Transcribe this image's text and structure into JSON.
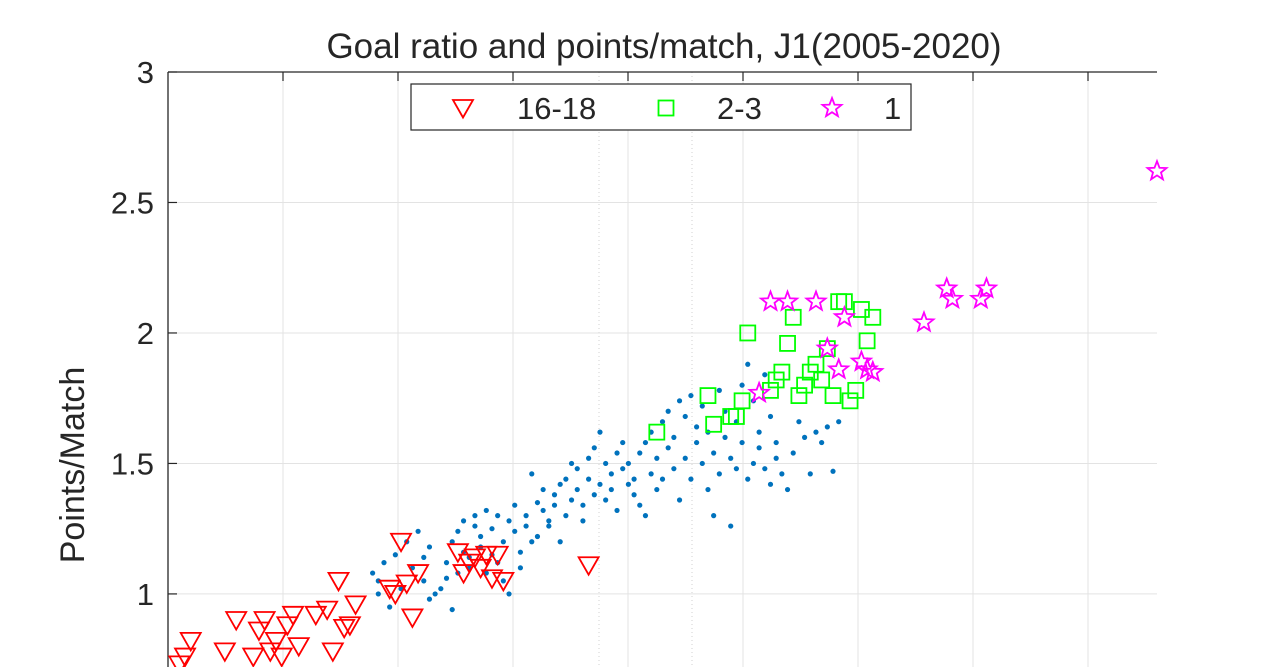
{
  "chart_data": {
    "type": "scatter",
    "title": "Goal ratio and points/match, J1(2005-2020)",
    "xlabel": "",
    "ylabel": "Points/Match",
    "ylim": [
      0.72,
      3
    ],
    "yticks": [
      1,
      1.5,
      2,
      2.5,
      3
    ],
    "ytick_labels": [
      "1",
      "1.5",
      "2",
      "2.5",
      "3"
    ],
    "grid": true,
    "legend": {
      "placement": "top-center",
      "orientation": "horizontal"
    },
    "series": [
      {
        "name": "",
        "marker": "dot",
        "color": "#0072BD",
        "points": [
          [
            0.0,
            1.08
          ],
          [
            0.01,
            1.05
          ],
          [
            0.01,
            1.0
          ],
          [
            0.02,
            1.12
          ],
          [
            0.03,
            0.95
          ],
          [
            0.04,
            1.15
          ],
          [
            0.05,
            1.02
          ],
          [
            0.06,
            1.2
          ],
          [
            0.07,
            1.1
          ],
          [
            0.08,
            1.24
          ],
          [
            0.09,
            1.05
          ],
          [
            0.09,
            1.14
          ],
          [
            0.1,
            1.18
          ],
          [
            0.1,
            0.98
          ],
          [
            0.11,
            1.0
          ],
          [
            0.12,
            1.02
          ],
          [
            0.13,
            1.12
          ],
          [
            0.13,
            1.06
          ],
          [
            0.14,
            1.2
          ],
          [
            0.14,
            0.94
          ],
          [
            0.15,
            1.24
          ],
          [
            0.15,
            1.08
          ],
          [
            0.16,
            1.28
          ],
          [
            0.16,
            1.16
          ],
          [
            0.17,
            1.14
          ],
          [
            0.17,
            1.1
          ],
          [
            0.18,
            1.3
          ],
          [
            0.18,
            1.26
          ],
          [
            0.19,
            1.22
          ],
          [
            0.19,
            1.18
          ],
          [
            0.2,
            1.32
          ],
          [
            0.2,
            1.08
          ],
          [
            0.21,
            1.25
          ],
          [
            0.21,
            1.15
          ],
          [
            0.22,
            1.3
          ],
          [
            0.22,
            1.12
          ],
          [
            0.23,
            1.2
          ],
          [
            0.23,
            1.05
          ],
          [
            0.24,
            1.28
          ],
          [
            0.24,
            1.0
          ],
          [
            0.25,
            1.24
          ],
          [
            0.25,
            1.34
          ],
          [
            0.26,
            1.16
          ],
          [
            0.26,
            1.1
          ],
          [
            0.27,
            1.26
          ],
          [
            0.27,
            1.3
          ],
          [
            0.28,
            1.2
          ],
          [
            0.28,
            1.46
          ],
          [
            0.29,
            1.35
          ],
          [
            0.29,
            1.22
          ],
          [
            0.3,
            1.4
          ],
          [
            0.3,
            1.32
          ],
          [
            0.31,
            1.28
          ],
          [
            0.31,
            1.26
          ],
          [
            0.32,
            1.38
          ],
          [
            0.32,
            1.34
          ],
          [
            0.33,
            1.42
          ],
          [
            0.33,
            1.2
          ],
          [
            0.34,
            1.3
          ],
          [
            0.34,
            1.44
          ],
          [
            0.35,
            1.5
          ],
          [
            0.35,
            1.36
          ],
          [
            0.36,
            1.4
          ],
          [
            0.36,
            1.48
          ],
          [
            0.37,
            1.34
          ],
          [
            0.37,
            1.28
          ],
          [
            0.38,
            1.52
          ],
          [
            0.38,
            1.44
          ],
          [
            0.39,
            1.38
          ],
          [
            0.39,
            1.56
          ],
          [
            0.4,
            1.62
          ],
          [
            0.4,
            1.42
          ],
          [
            0.41,
            1.36
          ],
          [
            0.41,
            1.5
          ],
          [
            0.42,
            1.46
          ],
          [
            0.42,
            1.4
          ],
          [
            0.43,
            1.54
          ],
          [
            0.43,
            1.32
          ],
          [
            0.44,
            1.48
          ],
          [
            0.44,
            1.58
          ],
          [
            0.45,
            1.42
          ],
          [
            0.45,
            1.5
          ],
          [
            0.46,
            1.38
          ],
          [
            0.46,
            1.44
          ],
          [
            0.47,
            1.34
          ],
          [
            0.47,
            1.54
          ],
          [
            0.48,
            1.58
          ],
          [
            0.48,
            1.3
          ],
          [
            0.49,
            1.62
          ],
          [
            0.49,
            1.46
          ],
          [
            0.5,
            1.4
          ],
          [
            0.5,
            1.52
          ],
          [
            0.51,
            1.66
          ],
          [
            0.51,
            1.44
          ],
          [
            0.52,
            1.7
          ],
          [
            0.52,
            1.56
          ],
          [
            0.53,
            1.6
          ],
          [
            0.53,
            1.48
          ],
          [
            0.54,
            1.36
          ],
          [
            0.54,
            1.74
          ],
          [
            0.55,
            1.68
          ],
          [
            0.55,
            1.52
          ],
          [
            0.56,
            1.76
          ],
          [
            0.56,
            1.44
          ],
          [
            0.57,
            1.64
          ],
          [
            0.57,
            1.58
          ],
          [
            0.58,
            1.5
          ],
          [
            0.58,
            1.72
          ],
          [
            0.59,
            1.4
          ],
          [
            0.59,
            1.62
          ],
          [
            0.6,
            1.54
          ],
          [
            0.6,
            1.3
          ],
          [
            0.61,
            1.78
          ],
          [
            0.61,
            1.46
          ],
          [
            0.62,
            1.7
          ],
          [
            0.62,
            1.6
          ],
          [
            0.63,
            1.52
          ],
          [
            0.63,
            1.26
          ],
          [
            0.64,
            1.66
          ],
          [
            0.64,
            1.48
          ],
          [
            0.65,
            1.8
          ],
          [
            0.65,
            1.58
          ],
          [
            0.66,
            1.88
          ],
          [
            0.66,
            1.44
          ],
          [
            0.67,
            1.74
          ],
          [
            0.67,
            1.5
          ],
          [
            0.68,
            1.62
          ],
          [
            0.68,
            1.56
          ],
          [
            0.69,
            1.84
          ],
          [
            0.69,
            1.48
          ],
          [
            0.7,
            1.68
          ],
          [
            0.7,
            1.42
          ],
          [
            0.71,
            1.58
          ],
          [
            0.71,
            1.52
          ],
          [
            0.72,
            1.46
          ],
          [
            0.73,
            1.4
          ],
          [
            0.74,
            1.54
          ],
          [
            0.75,
            1.66
          ],
          [
            0.76,
            1.6
          ],
          [
            0.77,
            1.46
          ],
          [
            0.78,
            1.62
          ],
          [
            0.79,
            1.58
          ],
          [
            0.8,
            1.64
          ],
          [
            0.81,
            1.47
          ],
          [
            0.82,
            1.66
          ]
        ]
      },
      {
        "name": "16-18",
        "marker": "triangle-down",
        "color": "#FF0000",
        "points": [
          [
            -0.34,
            0.73
          ],
          [
            -0.33,
            0.76
          ],
          [
            -0.32,
            0.82
          ],
          [
            -0.26,
            0.78
          ],
          [
            -0.24,
            0.9
          ],
          [
            -0.21,
            0.76
          ],
          [
            -0.2,
            0.86
          ],
          [
            -0.19,
            0.9
          ],
          [
            -0.18,
            0.78
          ],
          [
            -0.17,
            0.82
          ],
          [
            -0.16,
            0.76
          ],
          [
            -0.15,
            0.88
          ],
          [
            -0.14,
            0.92
          ],
          [
            -0.13,
            0.8
          ],
          [
            -0.1,
            0.92
          ],
          [
            -0.08,
            0.94
          ],
          [
            -0.07,
            0.78
          ],
          [
            -0.06,
            1.05
          ],
          [
            -0.05,
            0.87
          ],
          [
            -0.04,
            0.88
          ],
          [
            -0.03,
            0.96
          ],
          [
            0.03,
            1.02
          ],
          [
            0.04,
            1.0
          ],
          [
            0.05,
            1.2
          ],
          [
            0.06,
            1.04
          ],
          [
            0.07,
            0.91
          ],
          [
            0.08,
            1.08
          ],
          [
            0.15,
            1.16
          ],
          [
            0.16,
            1.08
          ],
          [
            0.17,
            1.12
          ],
          [
            0.18,
            1.14
          ],
          [
            0.19,
            1.1
          ],
          [
            0.2,
            1.15
          ],
          [
            0.21,
            1.06
          ],
          [
            0.22,
            1.15
          ],
          [
            0.23,
            1.05
          ],
          [
            0.38,
            1.11
          ]
        ]
      },
      {
        "name": "2-3",
        "marker": "square",
        "color": "#00FF00",
        "points": [
          [
            0.5,
            1.62
          ],
          [
            0.59,
            1.76
          ],
          [
            0.6,
            1.65
          ],
          [
            0.63,
            1.68
          ],
          [
            0.64,
            1.68
          ],
          [
            0.65,
            1.74
          ],
          [
            0.66,
            2.0
          ],
          [
            0.7,
            1.78
          ],
          [
            0.71,
            1.82
          ],
          [
            0.72,
            1.85
          ],
          [
            0.73,
            1.96
          ],
          [
            0.74,
            2.06
          ],
          [
            0.75,
            1.76
          ],
          [
            0.76,
            1.8
          ],
          [
            0.77,
            1.85
          ],
          [
            0.78,
            1.88
          ],
          [
            0.79,
            1.82
          ],
          [
            0.8,
            1.94
          ],
          [
            0.81,
            1.76
          ],
          [
            0.82,
            2.12
          ],
          [
            0.83,
            2.12
          ],
          [
            0.84,
            1.74
          ],
          [
            0.85,
            1.78
          ],
          [
            0.86,
            2.09
          ],
          [
            0.87,
            1.97
          ],
          [
            0.88,
            2.06
          ]
        ]
      },
      {
        "name": "1",
        "marker": "star",
        "color": "#FF00FF",
        "points": [
          [
            0.68,
            1.77
          ],
          [
            0.7,
            2.12
          ],
          [
            0.73,
            2.12
          ],
          [
            0.78,
            2.12
          ],
          [
            0.8,
            1.94
          ],
          [
            0.82,
            1.86
          ],
          [
            0.83,
            2.06
          ],
          [
            0.86,
            1.89
          ],
          [
            0.87,
            1.86
          ],
          [
            0.88,
            1.85
          ],
          [
            0.97,
            2.04
          ],
          [
            1.01,
            2.17
          ],
          [
            1.02,
            2.13
          ],
          [
            1.07,
            2.13
          ],
          [
            1.08,
            2.17
          ],
          [
            1.38,
            2.62
          ]
        ]
      }
    ]
  }
}
